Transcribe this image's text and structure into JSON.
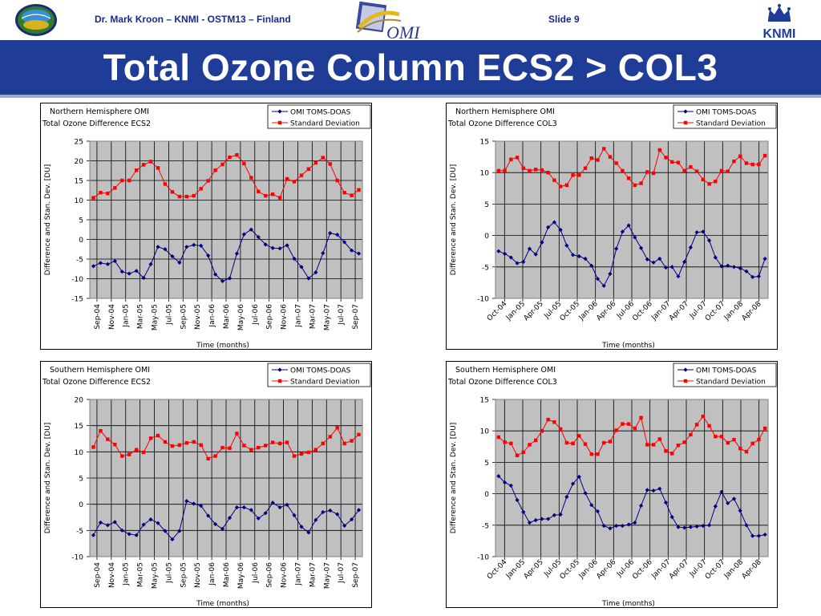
{
  "header": {
    "author": "Dr. Mark Kroon – KNMI - OSTM13 – Finland",
    "slide": "Slide 9",
    "omi_logo_text": "OMI",
    "knmi_logo_text": "KNMI"
  },
  "title": "Total Ozone Column ECS2 > COL3",
  "colors": {
    "title_bar": "#1f3c96",
    "plot_bg": "#c0c0c0",
    "blue_series": "#000080",
    "red_series": "#ff0000"
  },
  "chart_data": [
    {
      "type": "line",
      "title_lines": [
        "Northern Hemisphere OMI",
        "Total Ozone Difference ECS2"
      ],
      "xlabel": "Time (months)",
      "ylabel": "Difference and Stan. Dev. [DU]",
      "ylim": [
        -15,
        25
      ],
      "yticks": [
        -15,
        -10,
        -5,
        0,
        5,
        10,
        15,
        20,
        25
      ],
      "xtick_labels": [
        "Sep-04",
        "Nov-04",
        "Jan-05",
        "Mar-05",
        "May-05",
        "Jul-05",
        "Sep-05",
        "Nov-05",
        "Jan-06",
        "Mar-06",
        "May-06",
        "Jul-06",
        "Sep-06",
        "Nov-06",
        "Jan-07",
        "Mar-07",
        "May-07",
        "Jul-07",
        "Sep-07"
      ],
      "grid": true,
      "legend_position": "top-right",
      "series": [
        {
          "name": "OMI TOMS-DOAS",
          "color": "#000080",
          "marker": "diamond",
          "values": [
            -6.8,
            -6.0,
            -6.3,
            -5.5,
            -8.2,
            -8.7,
            -8.0,
            -9.8,
            -6.3,
            -1.9,
            -2.5,
            -4.3,
            -5.9,
            -1.9,
            -1.4,
            -1.6,
            -4.1,
            -8.9,
            -10.6,
            -9.9,
            -3.6,
            1.3,
            2.5,
            0.6,
            -1.3,
            -2.2,
            -2.3,
            -1.5,
            -4.9,
            -7.0,
            -9.9,
            -8.4,
            -3.5,
            1.6,
            1.2,
            -0.7,
            -2.8,
            -3.6
          ]
        },
        {
          "name": "Standard Deviation",
          "color": "#ff0000",
          "marker": "square",
          "values": [
            10.6,
            11.9,
            11.7,
            13.1,
            15.0,
            15.0,
            17.6,
            19.0,
            19.8,
            18.2,
            14.1,
            12.1,
            10.9,
            10.9,
            11.1,
            12.9,
            14.9,
            17.6,
            19.1,
            20.9,
            21.5,
            19.3,
            15.7,
            12.2,
            11.1,
            11.5,
            10.6,
            15.4,
            14.7,
            16.3,
            17.9,
            19.5,
            20.8,
            19.2,
            15.0,
            11.9,
            11.2,
            12.6
          ]
        }
      ]
    },
    {
      "type": "line",
      "title_lines": [
        "Northern Hemisphere OMI",
        "Total Ozone Difference COL3"
      ],
      "xlabel": "Time (months)",
      "ylabel": "Difference and Stan. Dev. [DU]",
      "ylim": [
        -10,
        15
      ],
      "yticks": [
        -10,
        -5,
        0,
        5,
        10,
        15
      ],
      "xtick_labels": [
        "Oct-04",
        "Jan-05",
        "Apr-05",
        "Jul-05",
        "Oct-05",
        "Jan-06",
        "Apr-06",
        "Jul-06",
        "Oct-06",
        "Jan-07",
        "Apr-07",
        "Jul-07",
        "Oct-07",
        "Jan-08",
        "Apr-08"
      ],
      "grid": true,
      "legend_position": "top-right",
      "series": [
        {
          "name": "OMI TOMS-DOAS",
          "color": "#000080",
          "marker": "diamond",
          "values": [
            -2.5,
            -2.9,
            -3.5,
            -4.4,
            -4.2,
            -2.1,
            -3.0,
            -1.1,
            1.3,
            2.1,
            0.9,
            -1.6,
            -3.1,
            -3.3,
            -3.7,
            -4.8,
            -6.9,
            -8.0,
            -6.1,
            -2.1,
            0.6,
            1.6,
            -0.3,
            -2.0,
            -3.8,
            -4.3,
            -3.7,
            -5.1,
            -5.0,
            -6.5,
            -4.2,
            -1.9,
            0.5,
            0.6,
            -0.8,
            -3.5,
            -4.9,
            -4.8,
            -5.0,
            -5.2,
            -5.7,
            -6.6,
            -6.5,
            -3.7
          ]
        },
        {
          "name": "Standard Deviation",
          "color": "#ff0000",
          "marker": "square",
          "values": [
            10.3,
            10.3,
            12.1,
            12.4,
            10.7,
            10.3,
            10.5,
            10.4,
            10.0,
            8.8,
            7.8,
            8.0,
            9.6,
            9.6,
            10.7,
            12.3,
            12.0,
            13.8,
            12.5,
            11.5,
            10.3,
            9.1,
            8.0,
            8.3,
            10.1,
            9.9,
            13.6,
            12.4,
            11.7,
            11.6,
            10.3,
            10.9,
            10.2,
            8.9,
            8.2,
            8.6,
            10.3,
            10.2,
            11.8,
            12.6,
            11.5,
            11.3,
            11.3,
            12.7
          ]
        }
      ]
    },
    {
      "type": "line",
      "title_lines": [
        "Southern Hemisphere OMI",
        "Total Ozone Difference ECS2"
      ],
      "xlabel": "Time (months)",
      "ylabel": "Difference and Stan. Dev. [DU]",
      "ylim": [
        -10,
        20
      ],
      "yticks": [
        -10,
        -5,
        0,
        5,
        10,
        15,
        20
      ],
      "xtick_labels": [
        "Sep-04",
        "Nov-04",
        "Jan-05",
        "Mar-05",
        "May-05",
        "Jul-05",
        "Sep-05",
        "Nov-05",
        "Jan-06",
        "Mar-06",
        "May-06",
        "Jul-06",
        "Sep-06",
        "Nov-06",
        "Jan-07",
        "Mar-07",
        "May-07",
        "Jul-07",
        "Sep-07"
      ],
      "grid": true,
      "legend_position": "top-right",
      "series": [
        {
          "name": "OMI TOMS-DOAS",
          "color": "#000080",
          "marker": "diamond",
          "values": [
            -5.9,
            -3.5,
            -4.0,
            -3.4,
            -5.0,
            -5.7,
            -5.9,
            -3.9,
            -2.9,
            -3.6,
            -5.1,
            -6.7,
            -5.1,
            0.6,
            0.1,
            -0.3,
            -2.2,
            -3.8,
            -4.7,
            -2.6,
            -0.6,
            -0.6,
            -1.1,
            -2.7,
            -1.7,
            0.3,
            -0.6,
            -0.1,
            -2.1,
            -4.3,
            -5.4,
            -3.0,
            -1.5,
            -1.2,
            -1.9,
            -4.1,
            -2.9,
            -1.1
          ]
        },
        {
          "name": "Standard Deviation",
          "color": "#ff0000",
          "marker": "square",
          "values": [
            10.9,
            14.0,
            12.4,
            11.4,
            9.2,
            9.5,
            10.4,
            9.9,
            12.6,
            13.1,
            11.9,
            11.1,
            11.3,
            11.7,
            11.9,
            11.3,
            8.7,
            9.2,
            10.8,
            10.7,
            13.5,
            11.2,
            10.4,
            10.8,
            11.2,
            11.8,
            11.6,
            11.8,
            9.2,
            9.6,
            9.9,
            10.4,
            11.6,
            12.9,
            14.6,
            11.6,
            12.1,
            13.3
          ]
        }
      ]
    },
    {
      "type": "line",
      "title_lines": [
        "Southern Hemisphere OMI",
        "Total Ozone Difference COL3"
      ],
      "xlabel": "Time (months)",
      "ylabel": "Difference and Stan. Dev. [DU]",
      "ylim": [
        -10,
        15
      ],
      "yticks": [
        -10,
        -5,
        0,
        5,
        10,
        15
      ],
      "xtick_labels": [
        "Oct-04",
        "Jan-05",
        "Apr-05",
        "Jul-05",
        "Oct-05",
        "Jan-06",
        "Apr-06",
        "Jul-06",
        "Oct-06",
        "Jan-07",
        "Apr-07",
        "Jul-07",
        "Oct-07",
        "Jan-08",
        "Apr-08"
      ],
      "grid": true,
      "legend_position": "top-right",
      "series": [
        {
          "name": "OMI TOMS-DOAS",
          "color": "#000080",
          "marker": "diamond",
          "values": [
            2.8,
            1.8,
            1.3,
            -1.0,
            -2.9,
            -4.6,
            -4.2,
            -4.0,
            -4.0,
            -3.4,
            -3.3,
            -0.5,
            1.6,
            2.7,
            0.1,
            -1.8,
            -2.8,
            -5.1,
            -5.5,
            -5.1,
            -5.1,
            -4.9,
            -4.6,
            -1.9,
            0.6,
            0.5,
            0.8,
            -1.4,
            -3.7,
            -5.3,
            -5.4,
            -5.3,
            -5.2,
            -5.1,
            -5.0,
            -2.0,
            0.3,
            -1.5,
            -0.8,
            -2.7,
            -5.0,
            -6.7,
            -6.7,
            -6.5
          ]
        },
        {
          "name": "Standard Deviation",
          "color": "#ff0000",
          "marker": "square",
          "values": [
            9.0,
            8.2,
            8.0,
            6.1,
            6.6,
            7.8,
            8.5,
            10.0,
            11.8,
            11.4,
            10.3,
            8.1,
            8.0,
            9.2,
            7.9,
            6.3,
            6.3,
            8.1,
            8.3,
            10.1,
            11.1,
            11.1,
            10.4,
            12.1,
            7.8,
            7.8,
            8.7,
            6.8,
            6.4,
            7.7,
            8.2,
            9.4,
            11.0,
            12.3,
            10.8,
            9.1,
            9.1,
            8.1,
            8.6,
            7.2,
            6.7,
            8.0,
            8.6,
            10.4
          ]
        }
      ]
    }
  ]
}
